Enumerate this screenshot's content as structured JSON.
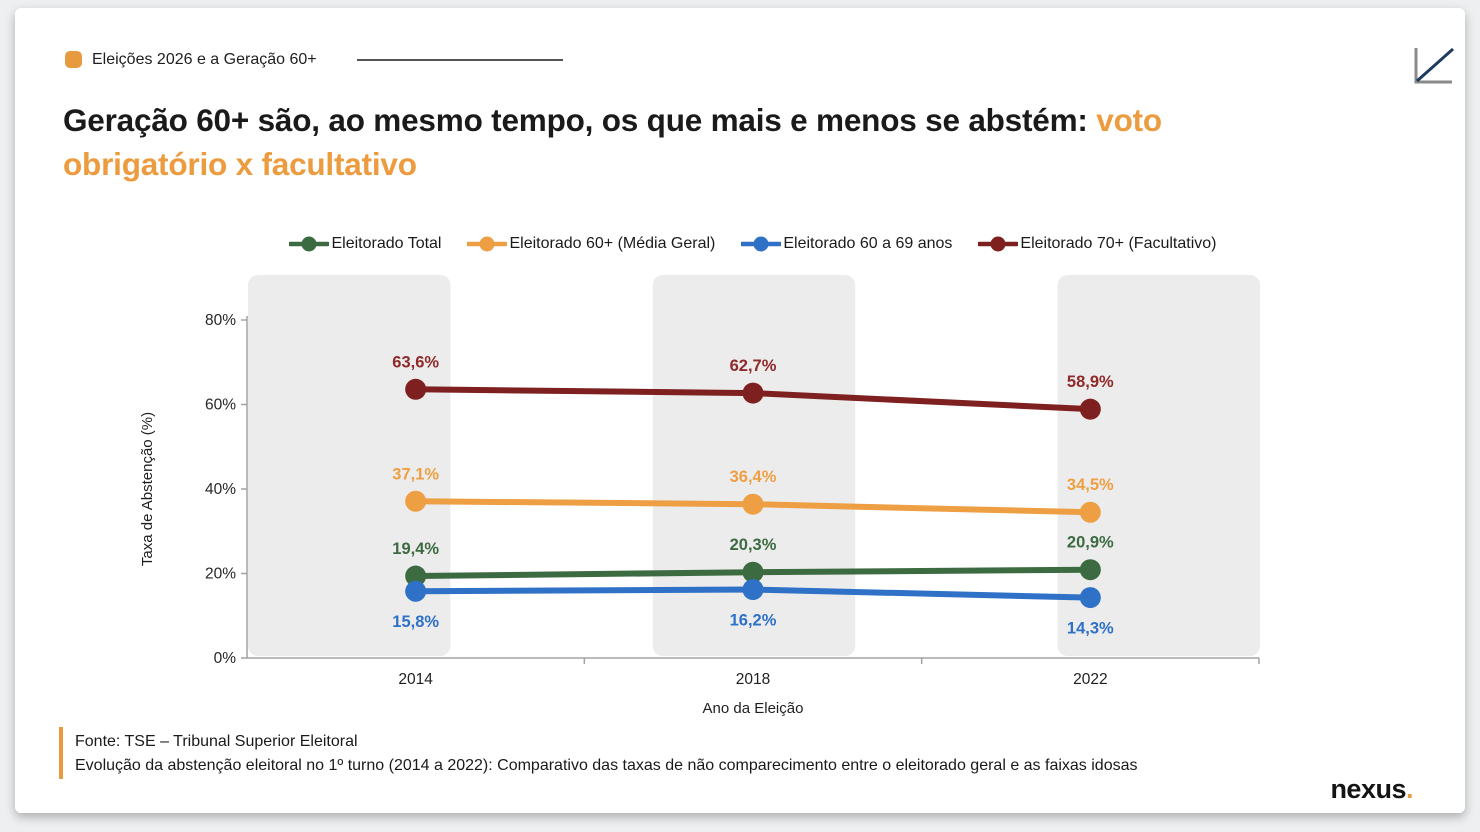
{
  "header": {
    "tag_label": "Eleições 2026 e a Geração 60+"
  },
  "title": {
    "black": "Geração 60+ são, ao mesmo tempo, os que mais e menos se abstém:",
    "orange_line1": "voto",
    "orange_line2": "obrigatório x facultativo"
  },
  "footer": {
    "line1": "Fonte: TSE – Tribunal Superior Eleitoral",
    "line2": "Evolução da abstenção eleitoral no 1º turno (2014 a 2022): Comparativo das taxas de não comparecimento entre o eleitorado geral e as faixas idosas"
  },
  "brand": {
    "name": "nexus",
    "dot": "."
  },
  "colors": {
    "accent_orange": "#e79a3e",
    "band_gray": "#ececec",
    "axis_gray": "#a3a3a3",
    "tick_text": "#262626"
  },
  "chart_data": {
    "type": "line",
    "title": "",
    "x": [
      "2014",
      "2018",
      "2022"
    ],
    "xlabel": "Ano da Eleição",
    "ylabel": "Taxa de Abstenção (%)",
    "ylim": [
      0,
      80
    ],
    "yticks": [
      "0%",
      "20%",
      "40%",
      "60%",
      "80%"
    ],
    "grid": false,
    "legend_position": "top",
    "background_bands": "alternating vertical gray columns behind each election year",
    "series": [
      {
        "name": "Eleitorado Total",
        "color": "#3d6b41",
        "label_color": "#3d6b41",
        "values": [
          19.4,
          20.3,
          20.9
        ],
        "labels": [
          "19,4%",
          "20,3%",
          "20,9%"
        ],
        "label_position": "above"
      },
      {
        "name": "Eleitorado 60+ (Média Geral)",
        "color": "#ee9f44",
        "label_color": "#ee9f44",
        "values": [
          37.1,
          36.4,
          34.5
        ],
        "labels": [
          "37,1%",
          "36,4%",
          "34,5%"
        ],
        "label_position": "above"
      },
      {
        "name": "Eleitorado 60 a 69 anos",
        "color": "#2f71c7",
        "label_color": "#2f71c7",
        "values": [
          15.8,
          16.2,
          14.3
        ],
        "labels": [
          "15,8%",
          "16,2%",
          "14,3%"
        ],
        "label_position": "below"
      },
      {
        "name": "Eleitorado 70+ (Facultativo)",
        "color": "#7e2020",
        "label_color": "#8e2a2a",
        "values": [
          63.6,
          62.7,
          58.9
        ],
        "labels": [
          "63,6%",
          "62,7%",
          "58,9%"
        ],
        "label_position": "above"
      }
    ]
  }
}
